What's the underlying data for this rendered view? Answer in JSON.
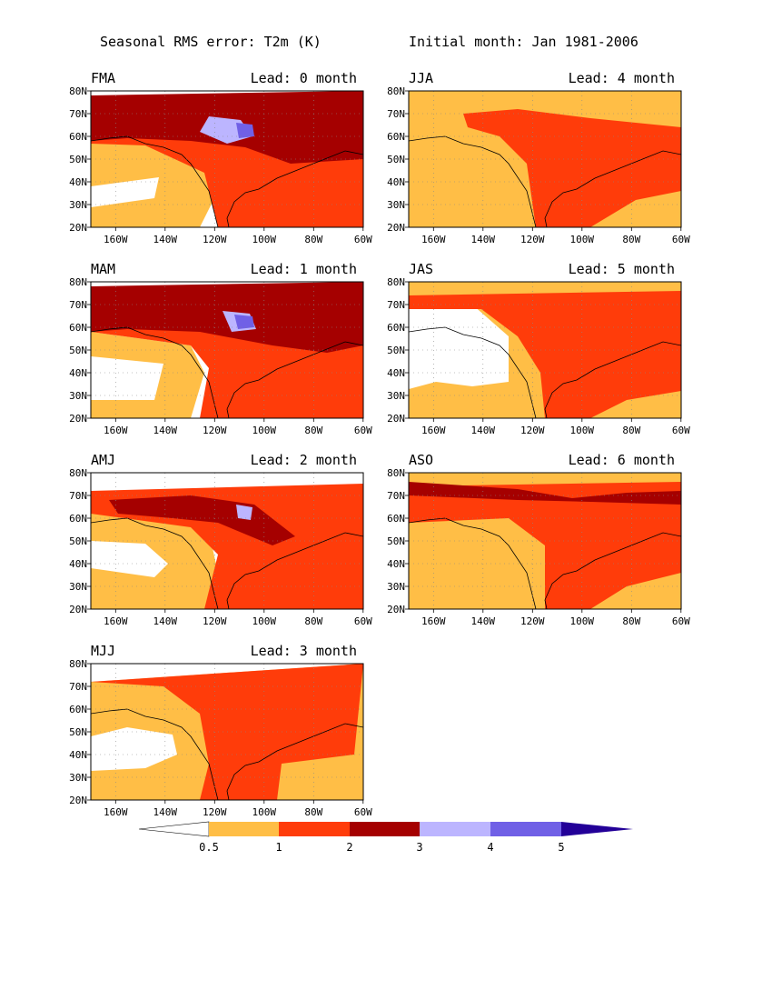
{
  "header": {
    "title_left": "Seasonal RMS error: T2m (K)",
    "title_right": "Initial month: Jan 1981-2006"
  },
  "panels": [
    {
      "season": "FMA",
      "lead": "Lead: 0 month"
    },
    {
      "season": "MAM",
      "lead": "Lead: 1 month"
    },
    {
      "season": "AMJ",
      "lead": "Lead: 2 month"
    },
    {
      "season": "MJJ",
      "lead": "Lead: 3 month"
    },
    {
      "season": "JJA",
      "lead": "Lead: 4 month"
    },
    {
      "season": "JAS",
      "lead": "Lead: 5 month"
    },
    {
      "season": "ASO",
      "lead": "Lead: 6 month"
    }
  ],
  "axes": {
    "lat_ticks": [
      "80N",
      "70N",
      "60N",
      "50N",
      "40N",
      "30N",
      "20N"
    ],
    "lon_ticks": [
      "160W",
      "140W",
      "120W",
      "100W",
      "80W",
      "60W"
    ]
  },
  "colorbar": {
    "levels": [
      "0.5",
      "1",
      "2",
      "3",
      "4",
      "5"
    ],
    "colors": [
      "#ffffff",
      "#ffbe46",
      "#ff3c0a",
      "#a50000",
      "#bcb5ff",
      "#7060e6",
      "#230098"
    ]
  },
  "chart_data": {
    "type": "heatmap",
    "variable": "RMS error T2m (K)",
    "lon_range": [
      -170,
      -60
    ],
    "lat_range": [
      20,
      80
    ],
    "contour_levels": [
      0.5,
      1,
      2,
      3,
      4,
      5
    ]
  }
}
